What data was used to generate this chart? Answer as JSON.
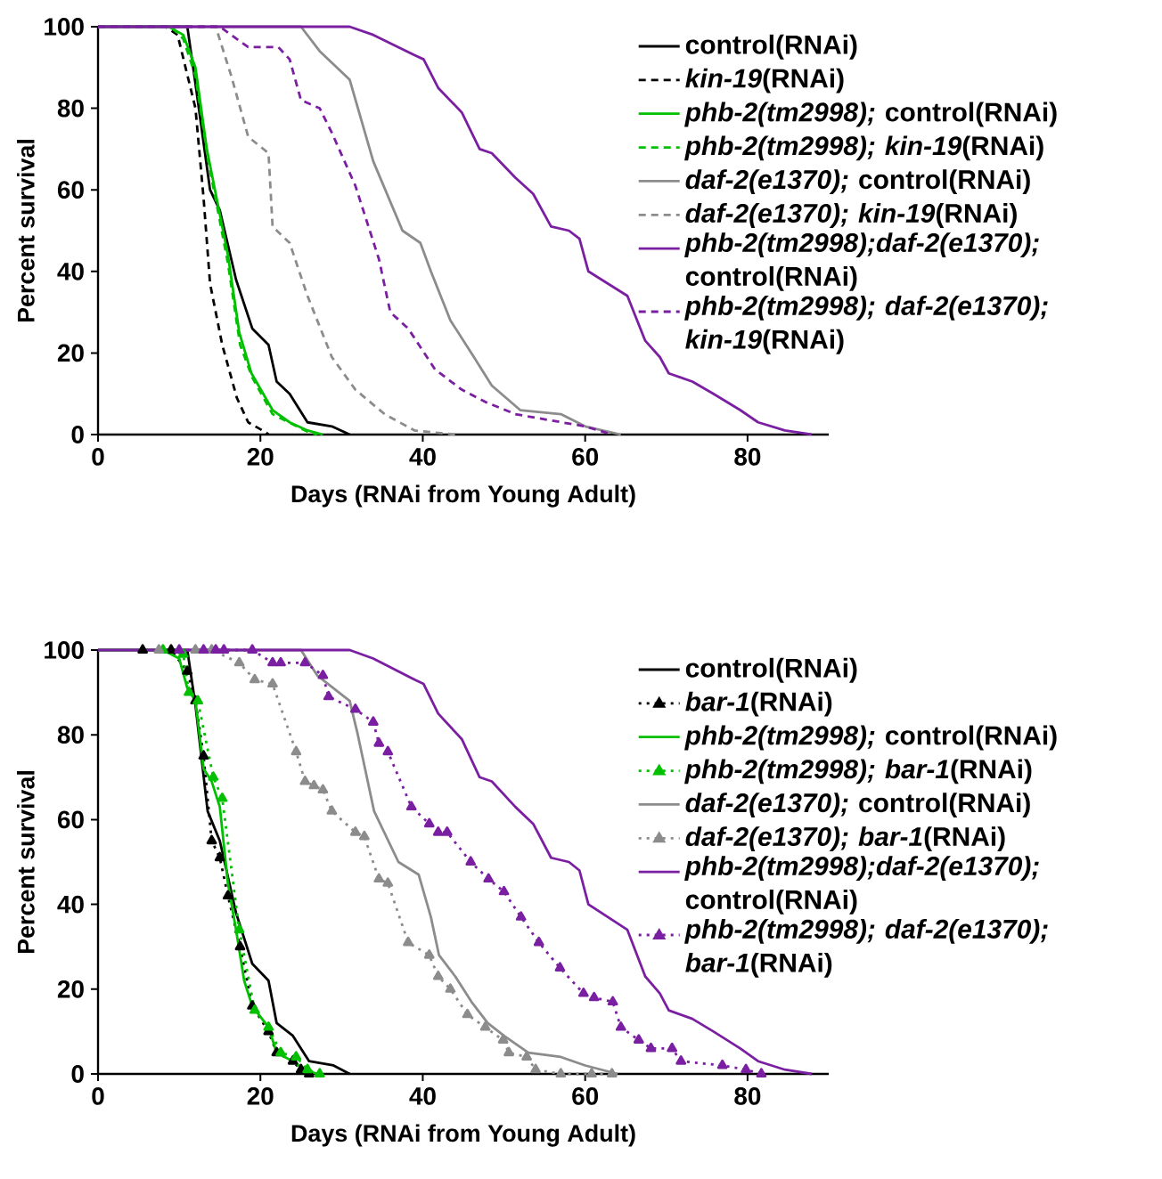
{
  "chart_data": [
    {
      "type": "line",
      "xlabel": "Days (RNAi from Young Adult)",
      "ylabel": "Percent survival",
      "xlim": [
        0,
        90
      ],
      "ylim": [
        0,
        100
      ],
      "xticks": [
        0,
        20,
        40,
        60,
        80
      ],
      "yticks": [
        0,
        20,
        40,
        60,
        80,
        100
      ],
      "legend": "top right",
      "series": [
        {
          "name": "control(RNAi)",
          "color": "#000000",
          "line_style": "solid",
          "x": [
            0,
            11,
            12,
            13.8,
            15,
            17,
            19,
            21,
            22,
            23.6,
            25.8,
            28.8,
            31
          ],
          "values": [
            100,
            100,
            86,
            60,
            55,
            38,
            26,
            22,
            13,
            10,
            3,
            2,
            0
          ]
        },
        {
          "name": "*kin-19*(RNAi)",
          "color": "#000000",
          "line_style": "dashed",
          "x": [
            0,
            8.3,
            9.8,
            12,
            13,
            13.8,
            15.3,
            17.1,
            18.5,
            20.7,
            21
          ],
          "values": [
            100,
            100,
            98,
            80,
            58,
            37,
            22,
            9,
            3,
            0.5,
            0
          ]
        },
        {
          "name": "*phb-2(tm2998);* control(RNAi)",
          "color": "#00c000",
          "line_style": "solid",
          "x": [
            0,
            8.7,
            10.5,
            12,
            13.4,
            16,
            17.4,
            18.9,
            21.5,
            23.6,
            25.8,
            27.7
          ],
          "values": [
            100,
            100,
            98,
            90,
            70,
            44,
            25,
            15,
            6,
            3,
            1,
            0
          ]
        },
        {
          "name": "*phb-2(tm2998); kin-19*(RNAi)",
          "color": "#00c000",
          "line_style": "dashed",
          "x": [
            0,
            9,
            10.5,
            12,
            13.5,
            16,
            17.5,
            19,
            21.5,
            23.5,
            26,
            27
          ],
          "values": [
            100,
            100,
            97,
            88,
            68,
            42,
            22,
            14,
            5,
            3,
            0.5,
            0
          ]
        },
        {
          "name": "*daf-2(e1370);* control(RNAi)",
          "color": "#8c8c8c",
          "line_style": "solid",
          "x": [
            0,
            25,
            27.3,
            31,
            33.9,
            37.5,
            39.7,
            41,
            43.4,
            46.3,
            48.5,
            52,
            57,
            60,
            64.4
          ],
          "values": [
            100,
            100,
            94,
            87,
            67,
            50,
            47,
            40,
            28,
            19,
            12,
            6,
            5,
            2,
            0
          ]
        },
        {
          "name": "*daf-2(e1370); kin-19*(RNAi)",
          "color": "#8c8c8c",
          "line_style": "dashed",
          "x": [
            0,
            14.5,
            16.4,
            18.5,
            21,
            21.5,
            23.6,
            25.8,
            28.8,
            31.7,
            35.3,
            39,
            44
          ],
          "values": [
            100,
            100,
            88,
            73,
            69,
            51,
            47,
            34,
            19,
            11,
            5,
            1,
            0
          ]
        },
        {
          "name": "*phb-2(tm2998);daf-2(e1370);* control(RNAi)",
          "color": "#7b1fa2",
          "line_style": "solid",
          "x": [
            0,
            31,
            33.9,
            39,
            40.1,
            41.9,
            44.8,
            47,
            48.5,
            51.4,
            53.6,
            55.8,
            58,
            59.3,
            60.4,
            65.2,
            67.4,
            69.2,
            70.3,
            73.2,
            75.8,
            79.1,
            81.3,
            84.6,
            87.9
          ],
          "values": [
            100,
            100,
            98,
            93,
            92,
            85,
            79,
            70,
            69,
            63,
            59,
            51,
            50,
            48,
            40,
            34,
            23,
            19,
            15,
            13,
            10,
            6,
            3,
            1,
            0
          ]
        },
        {
          "name": "*phb-2(tm2998); daf-2(e1370); kin-19*(RNAi)",
          "color": "#7b1fa2",
          "line_style": "dashed",
          "x": [
            0,
            15,
            18.5,
            22.2,
            23.6,
            25,
            27.3,
            28.8,
            31.7,
            34.6,
            36,
            38.2,
            41.5,
            44.8,
            47.7,
            51.4,
            60,
            63.3
          ],
          "values": [
            100,
            100,
            95,
            95,
            92,
            82,
            80,
            74,
            61,
            43,
            30,
            26,
            16,
            11,
            8,
            5,
            2,
            0
          ]
        }
      ]
    },
    {
      "type": "line",
      "xlabel": "Days (RNAi from Young Adult)",
      "ylabel": "Percent survival",
      "xlim": [
        0,
        90
      ],
      "ylim": [
        0,
        100
      ],
      "xticks": [
        0,
        20,
        40,
        60,
        80
      ],
      "yticks": [
        0,
        20,
        40,
        60,
        80,
        100
      ],
      "legend": "top right",
      "series": [
        {
          "name": "control(RNAi)",
          "color": "#000000",
          "line_style": "solid",
          "x": [
            0,
            11,
            12,
            13.5,
            15,
            17,
            19,
            21,
            22,
            24,
            26,
            29,
            31
          ],
          "values": [
            100,
            100,
            87,
            62,
            55,
            38,
            26,
            22,
            12,
            9,
            3,
            2,
            0
          ]
        },
        {
          "name": "*bar-1*(RNAi)",
          "color": "#000000",
          "line_style": "dotted",
          "marker": "triangle",
          "x": [
            5.5,
            9,
            11,
            12,
            13,
            14,
            15,
            16,
            17.5,
            19,
            21,
            22,
            24,
            25,
            26
          ],
          "values": [
            100,
            100,
            95,
            88,
            75,
            55,
            51,
            42,
            30,
            16,
            10,
            5,
            3,
            1,
            0
          ]
        },
        {
          "name": "*phb-2(tm2998);* control(RNAi)",
          "color": "#00c000",
          "line_style": "solid",
          "x": [
            0,
            8,
            10,
            11,
            12,
            13,
            14,
            15,
            16,
            17,
            18,
            19,
            21,
            22,
            24,
            25.5,
            27
          ],
          "values": [
            100,
            100,
            98,
            91,
            88,
            72,
            69,
            63,
            45,
            34,
            22,
            16,
            11,
            5,
            3,
            1,
            0
          ]
        },
        {
          "name": "*phb-2(tm2998); bar-1*(RNAi)",
          "color": "#00c000",
          "line_style": "dotted",
          "marker": "triangle",
          "x": [
            8,
            10.5,
            11.2,
            12.3,
            14.2,
            15.3,
            17.4,
            19.3,
            21,
            22.5,
            24.4,
            25.8,
            27.3
          ],
          "values": [
            100,
            99,
            90,
            88,
            70,
            65,
            34,
            15,
            11,
            5,
            4,
            1,
            0
          ]
        },
        {
          "name": "*daf-2(e1370);* control(RNAi)",
          "color": "#8c8c8c",
          "line_style": "solid",
          "x": [
            0,
            25,
            27,
            31,
            32,
            34,
            37,
            39.5,
            41,
            42,
            44,
            46,
            48,
            50,
            53,
            57,
            60,
            64
          ],
          "values": [
            100,
            100,
            94,
            88,
            80,
            62,
            50,
            47,
            37,
            28,
            23,
            17,
            12,
            9,
            5,
            4,
            2,
            0
          ]
        },
        {
          "name": "*daf-2(e1370); bar-1*(RNAi)",
          "color": "#8c8c8c",
          "line_style": "dotted",
          "marker": "triangle",
          "x": [
            7.5,
            12,
            14,
            17.4,
            19.3,
            21.5,
            24.4,
            25.5,
            26.6,
            27.7,
            28.8,
            31.7,
            32.8,
            34.6,
            35.7,
            38.2,
            40.8,
            41.9,
            43.4,
            45.5,
            47.7,
            49.9,
            50.6,
            52.8,
            53.9,
            57,
            60.8,
            63.3
          ],
          "values": [
            100,
            100,
            100,
            97,
            93,
            92,
            76,
            69,
            68,
            67,
            62,
            57,
            56,
            46,
            45,
            31,
            28,
            23,
            20,
            14,
            11,
            8,
            5,
            4,
            1,
            0,
            0,
            0
          ]
        },
        {
          "name": "*phb-2(tm2998);daf-2(e1370);* control(RNAi)",
          "color": "#7b1fa2",
          "line_style": "solid",
          "x": [
            0,
            31,
            33.9,
            39,
            40.1,
            41.9,
            44.8,
            47,
            48.5,
            51.4,
            53.6,
            55.8,
            58,
            59.3,
            60.4,
            65.2,
            67.4,
            69.2,
            70.3,
            73.2,
            75.8,
            79.1,
            81.3,
            84.6,
            87.9
          ],
          "values": [
            100,
            100,
            98,
            93,
            92,
            85,
            79,
            70,
            69,
            63,
            59,
            51,
            50,
            48,
            40,
            34,
            23,
            19,
            15,
            13,
            10,
            6,
            3,
            1,
            0
          ]
        },
        {
          "name": "*phb-2(tm2998); daf-2(e1370); bar-1*(RNAi)",
          "color": "#7b1fa2",
          "line_style": "dotted",
          "marker": "triangle",
          "x": [
            10,
            13,
            14.5,
            15.5,
            19,
            21.5,
            22.5,
            25.5,
            27.7,
            28.4,
            31.7,
            33.9,
            34.6,
            35.7,
            38.6,
            40.8,
            41.9,
            43,
            45.9,
            48.1,
            50,
            52.1,
            54.3,
            56.9,
            59.8,
            61.1,
            63.4,
            64.4,
            66.6,
            68.1,
            70.7,
            71.8,
            76.9,
            79.8,
            81.7
          ],
          "values": [
            100,
            100,
            100,
            100,
            100,
            97,
            97,
            97,
            94,
            89,
            86,
            83,
            78,
            76,
            63,
            59,
            57,
            57,
            50,
            46,
            43,
            37,
            31,
            25,
            19,
            18,
            17,
            11,
            8,
            6,
            6,
            3,
            2,
            1,
            0
          ]
        }
      ]
    }
  ]
}
